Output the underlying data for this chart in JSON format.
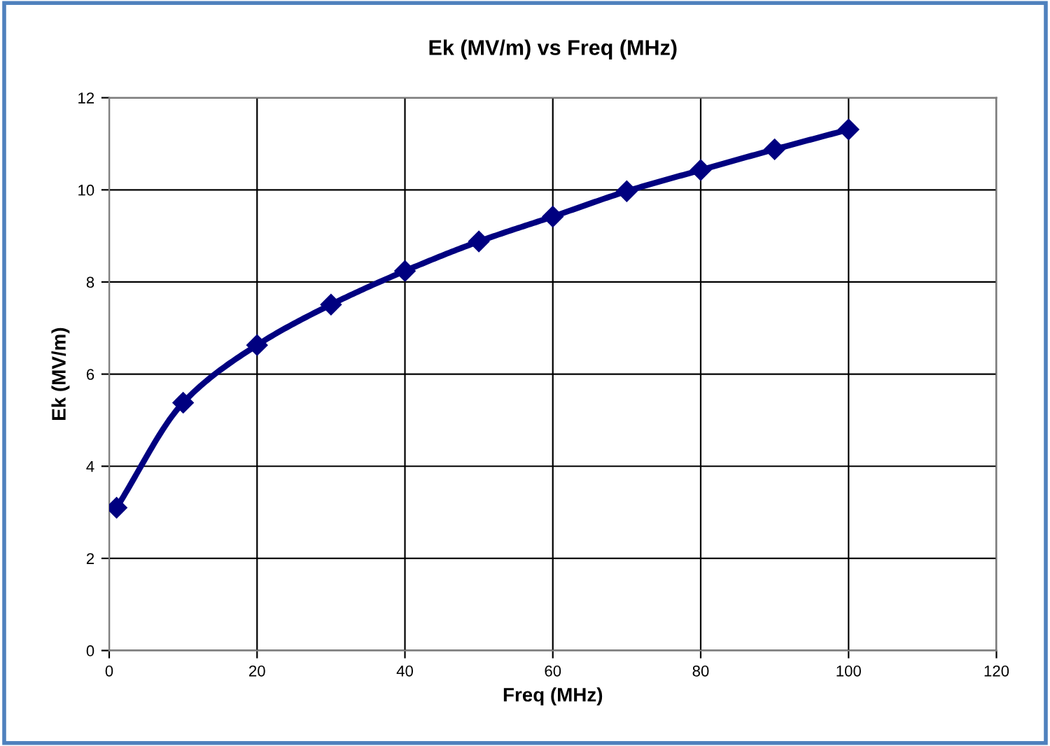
{
  "chart_data": {
    "type": "line",
    "title": "Ek (MV/m) vs Freq (MHz)",
    "xlabel": "Freq (MHz)",
    "ylabel": "Ek (MV/m)",
    "series": [
      {
        "color": "#000080",
        "x": [
          1,
          10,
          20,
          30,
          40,
          50,
          60,
          70,
          80,
          90,
          100
        ],
        "values": [
          3.1,
          5.38,
          6.63,
          7.51,
          8.24,
          8.88,
          9.42,
          9.97,
          10.43,
          10.88,
          11.31
        ]
      }
    ],
    "xlim": [
      0,
      120
    ],
    "xticks": [
      0,
      20,
      40,
      60,
      80,
      100,
      120
    ],
    "ylim": [
      0,
      12
    ],
    "yticks": [
      0,
      2,
      4,
      6,
      8,
      10,
      12
    ],
    "grid": true,
    "marker": "diamond",
    "line_style": "solid"
  }
}
